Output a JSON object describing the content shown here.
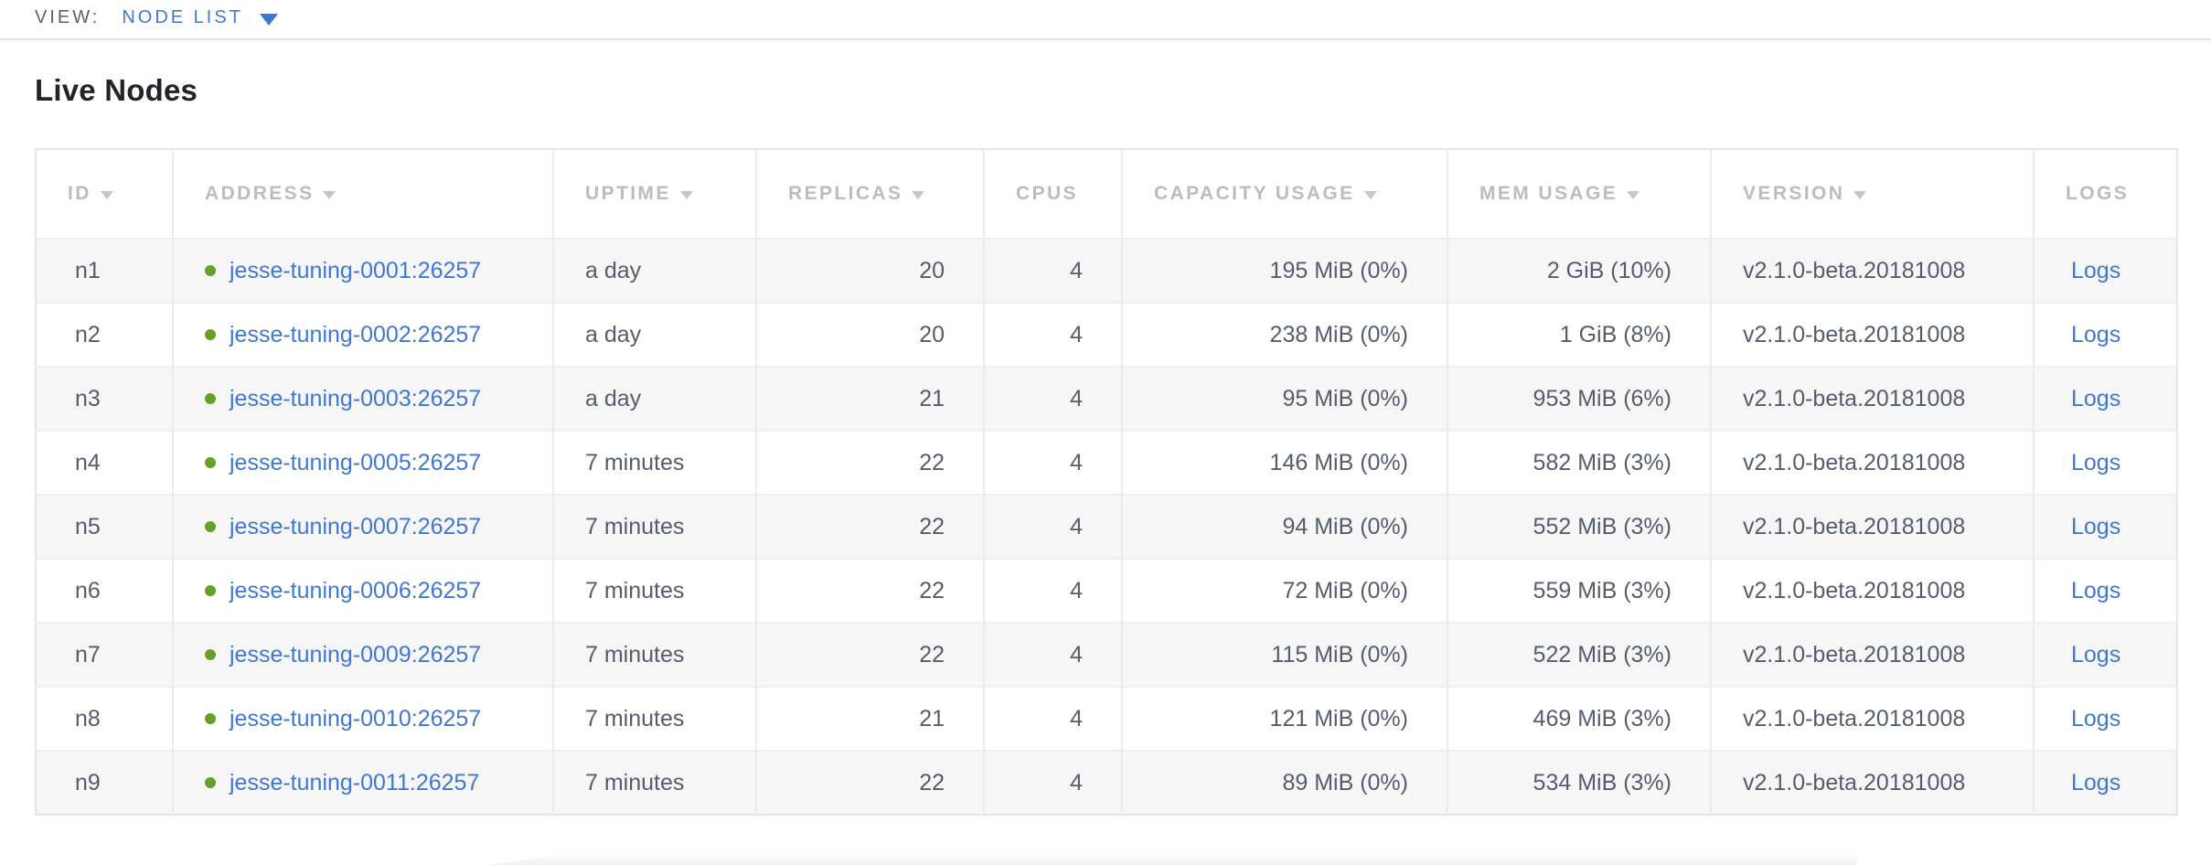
{
  "view_bar": {
    "label": "VIEW:",
    "selected": "NODE LIST"
  },
  "page": {
    "title": "Live Nodes"
  },
  "table": {
    "columns": [
      {
        "field": "id",
        "label": "ID",
        "sortable": true,
        "align": "left"
      },
      {
        "field": "address",
        "label": "ADDRESS",
        "sortable": true,
        "align": "left"
      },
      {
        "field": "uptime",
        "label": "UPTIME",
        "sortable": true,
        "align": "left"
      },
      {
        "field": "replicas",
        "label": "REPLICAS",
        "sortable": true,
        "align": "right"
      },
      {
        "field": "cpus",
        "label": "CPUS",
        "sortable": false,
        "align": "right"
      },
      {
        "field": "capacity_usage",
        "label": "CAPACITY USAGE",
        "sortable": true,
        "align": "right"
      },
      {
        "field": "mem_usage",
        "label": "MEM USAGE",
        "sortable": true,
        "align": "right"
      },
      {
        "field": "version",
        "label": "VERSION",
        "sortable": true,
        "align": "left"
      },
      {
        "field": "logs",
        "label": "LOGS",
        "sortable": false,
        "align": "left"
      }
    ],
    "rows": [
      {
        "id": "n1",
        "status": "live",
        "address": "jesse-tuning-0001:26257",
        "uptime": "a day",
        "replicas": "20",
        "cpus": "4",
        "capacity_usage": "195 MiB (0%)",
        "mem_usage": "2 GiB (10%)",
        "version": "v2.1.0-beta.20181008",
        "logs": "Logs"
      },
      {
        "id": "n2",
        "status": "live",
        "address": "jesse-tuning-0002:26257",
        "uptime": "a day",
        "replicas": "20",
        "cpus": "4",
        "capacity_usage": "238 MiB (0%)",
        "mem_usage": "1 GiB (8%)",
        "version": "v2.1.0-beta.20181008",
        "logs": "Logs"
      },
      {
        "id": "n3",
        "status": "live",
        "address": "jesse-tuning-0003:26257",
        "uptime": "a day",
        "replicas": "21",
        "cpus": "4",
        "capacity_usage": "95 MiB (0%)",
        "mem_usage": "953 MiB (6%)",
        "version": "v2.1.0-beta.20181008",
        "logs": "Logs"
      },
      {
        "id": "n4",
        "status": "live",
        "address": "jesse-tuning-0005:26257",
        "uptime": "7 minutes",
        "replicas": "22",
        "cpus": "4",
        "capacity_usage": "146 MiB (0%)",
        "mem_usage": "582 MiB (3%)",
        "version": "v2.1.0-beta.20181008",
        "logs": "Logs"
      },
      {
        "id": "n5",
        "status": "live",
        "address": "jesse-tuning-0007:26257",
        "uptime": "7 minutes",
        "replicas": "22",
        "cpus": "4",
        "capacity_usage": "94 MiB (0%)",
        "mem_usage": "552 MiB (3%)",
        "version": "v2.1.0-beta.20181008",
        "logs": "Logs"
      },
      {
        "id": "n6",
        "status": "live",
        "address": "jesse-tuning-0006:26257",
        "uptime": "7 minutes",
        "replicas": "22",
        "cpus": "4",
        "capacity_usage": "72 MiB (0%)",
        "mem_usage": "559 MiB (3%)",
        "version": "v2.1.0-beta.20181008",
        "logs": "Logs"
      },
      {
        "id": "n7",
        "status": "live",
        "address": "jesse-tuning-0009:26257",
        "uptime": "7 minutes",
        "replicas": "22",
        "cpus": "4",
        "capacity_usage": "115 MiB (0%)",
        "mem_usage": "522 MiB (3%)",
        "version": "v2.1.0-beta.20181008",
        "logs": "Logs"
      },
      {
        "id": "n8",
        "status": "live",
        "address": "jesse-tuning-0010:26257",
        "uptime": "7 minutes",
        "replicas": "21",
        "cpus": "4",
        "capacity_usage": "121 MiB (0%)",
        "mem_usage": "469 MiB (3%)",
        "version": "v2.1.0-beta.20181008",
        "logs": "Logs"
      },
      {
        "id": "n9",
        "status": "live",
        "address": "jesse-tuning-0011:26257",
        "uptime": "7 minutes",
        "replicas": "22",
        "cpus": "4",
        "capacity_usage": "89 MiB (0%)",
        "mem_usage": "534 MiB (3%)",
        "version": "v2.1.0-beta.20181008",
        "logs": "Logs"
      }
    ]
  },
  "icons": {
    "view_dropdown": "chevron-down-icon",
    "sort": "sort-desc-arrow-icon",
    "node_status": "live-status-dot-icon"
  },
  "colors": {
    "accent_blue": "#3e78d2",
    "live_dot_green": "#64a226",
    "header_text_gray": "#b9bcc1",
    "cell_text_slate": "#545c6e",
    "row_stripe_gray": "#f6f6f6",
    "table_border_gray": "#e5e5e5",
    "heading_black": "#20242b"
  }
}
